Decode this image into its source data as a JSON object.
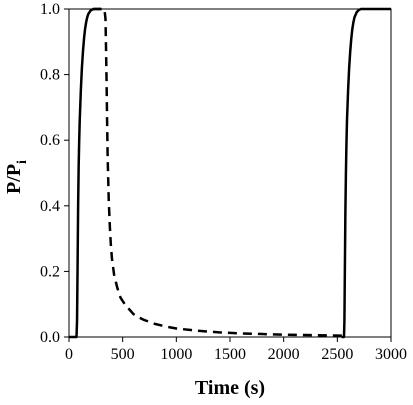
{
  "chart_data": {
    "type": "line",
    "title": "",
    "xlabel": "Time (s)",
    "ylabel_main": "P/P",
    "ylabel_sub": "i",
    "xlim": [
      0,
      3000
    ],
    "ylim": [
      0,
      1.0
    ],
    "x_ticks": [
      0,
      500,
      1000,
      1500,
      2000,
      2500,
      3000
    ],
    "x_tick_labels": [
      "0",
      "500",
      "1000",
      "1500",
      "2000",
      "2500",
      "3000"
    ],
    "y_ticks": [
      0,
      0.2,
      0.4,
      0.6,
      0.8,
      1.0
    ],
    "y_tick_labels": [
      "0.0",
      "0.2",
      "0.4",
      "0.6",
      "0.8",
      "1.0"
    ],
    "grid": false,
    "series": [
      {
        "style": "solid",
        "color": "#000000",
        "x": [
          0,
          70,
          75,
          80,
          85,
          90,
          95,
          100,
          110,
          120,
          130,
          140,
          150,
          160,
          170,
          180,
          200,
          220,
          240,
          260,
          280,
          300
        ],
        "y": [
          0,
          0,
          0.05,
          0.22,
          0.4,
          0.52,
          0.6,
          0.66,
          0.75,
          0.82,
          0.87,
          0.91,
          0.94,
          0.96,
          0.975,
          0.985,
          0.995,
          0.999,
          1.0,
          1.0,
          1.0,
          1.0
        ]
      },
      {
        "style": "dashed",
        "color": "#000000",
        "x": [
          220,
          280,
          330,
          340,
          345,
          350,
          355,
          360,
          370,
          380,
          390,
          400,
          420,
          450,
          480,
          520,
          560,
          600,
          650,
          700,
          800,
          900,
          1000,
          1200,
          1400,
          1600,
          1800,
          2000,
          2200,
          2400,
          2550
        ],
        "y": [
          1.0,
          1.0,
          1.0,
          0.97,
          0.88,
          0.78,
          0.66,
          0.55,
          0.42,
          0.34,
          0.28,
          0.24,
          0.19,
          0.15,
          0.12,
          0.1,
          0.085,
          0.07,
          0.06,
          0.052,
          0.04,
          0.032,
          0.026,
          0.019,
          0.014,
          0.011,
          0.009,
          0.007,
          0.006,
          0.005,
          0.004
        ]
      },
      {
        "style": "solid",
        "color": "#000000",
        "x": [
          2540,
          2562,
          2566,
          2570,
          2575,
          2580,
          2585,
          2590,
          2600,
          2610,
          2620,
          2630,
          2640,
          2650,
          2660,
          2680,
          2700,
          2720,
          2740,
          2760,
          2800,
          2850,
          2900,
          3000
        ],
        "y": [
          0,
          0,
          0.05,
          0.2,
          0.38,
          0.5,
          0.59,
          0.66,
          0.75,
          0.82,
          0.87,
          0.91,
          0.94,
          0.96,
          0.975,
          0.99,
          0.997,
          1.0,
          1.0,
          1.0,
          1.0,
          1.0,
          1.0,
          1.0
        ]
      }
    ]
  }
}
